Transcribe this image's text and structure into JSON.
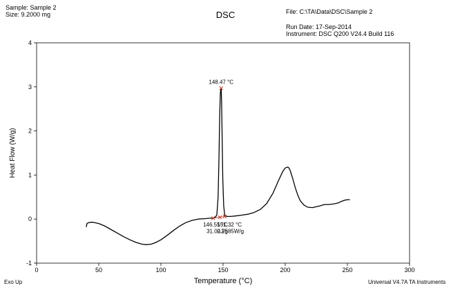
{
  "header": {
    "sample": "Sample: Sample 2",
    "size": "Size:  9.2000 mg",
    "file": "File: C:\\TA\\Data\\DSC\\Sample 2",
    "run_date": "Run Date: 17-Sep-2014",
    "instrument": "Instrument: DSC Q200 V24.4 Build 116"
  },
  "footer": {
    "exo": "Exo Up",
    "software": "Universal V4.7A TA Instruments"
  },
  "chart_data": {
    "type": "line",
    "title": "DSC",
    "xlabel": "Temperature (°C)",
    "ylabel": "Heat Flow (W/g)",
    "xlim": [
      0,
      300
    ],
    "ylim": [
      -1,
      4
    ],
    "xticks": [
      0,
      50,
      100,
      150,
      200,
      250,
      300
    ],
    "yticks": [
      -1,
      0,
      1,
      2,
      3,
      4
    ],
    "grid": false,
    "colors": {
      "curve": "#000000",
      "marker": "#c0392b"
    },
    "series": [
      {
        "x": [
          40,
          40.5,
          42,
          45,
          50,
          55,
          60,
          65,
          70,
          75,
          80,
          85,
          88,
          92,
          96,
          100,
          105,
          110,
          115,
          120,
          125,
          130,
          135,
          140,
          142,
          143,
          144,
          145,
          146,
          146.8,
          147.2,
          147.8,
          148.2,
          148.47,
          148.8,
          149.3,
          149.8,
          150.5,
          151.32,
          153,
          156,
          160,
          165,
          170,
          175,
          180,
          185,
          190,
          195,
          198,
          200,
          202,
          203,
          204,
          206,
          208,
          210,
          212,
          215,
          218,
          222,
          225,
          228,
          230,
          232,
          235,
          238,
          240,
          243,
          245,
          248,
          250,
          252
        ],
        "y": [
          -0.18,
          -0.1,
          -0.08,
          -0.07,
          -0.1,
          -0.16,
          -0.24,
          -0.32,
          -0.4,
          -0.47,
          -0.53,
          -0.57,
          -0.58,
          -0.57,
          -0.53,
          -0.47,
          -0.37,
          -0.26,
          -0.16,
          -0.08,
          -0.03,
          0.0,
          0.01,
          0.02,
          0.02,
          0.03,
          0.05,
          0.1,
          0.5,
          1.5,
          2.3,
          2.85,
          2.95,
          2.97,
          2.7,
          1.8,
          0.9,
          0.3,
          0.08,
          0.06,
          0.06,
          0.07,
          0.09,
          0.11,
          0.15,
          0.22,
          0.35,
          0.58,
          0.9,
          1.08,
          1.16,
          1.18,
          1.16,
          1.1,
          0.92,
          0.72,
          0.55,
          0.42,
          0.32,
          0.27,
          0.26,
          0.28,
          0.3,
          0.32,
          0.33,
          0.33,
          0.34,
          0.35,
          0.37,
          0.4,
          0.43,
          0.44,
          0.44
        ]
      }
    ],
    "markers": [
      {
        "x": 148.47,
        "y": 2.97
      },
      {
        "x": 142,
        "y": 0.02
      },
      {
        "x": 151.32,
        "y": 0.06
      },
      {
        "x": 147.5,
        "y": 0.04
      }
    ],
    "annotations": [
      {
        "label": "peak",
        "text": "148.47 °C",
        "x": 148.47,
        "y": 2.97
      },
      {
        "label": "onset",
        "text": "146.55 °C",
        "x": 146.55,
        "y": -0.12
      },
      {
        "label": "enthalpy",
        "text": "31.02J/g",
        "x": 146.55,
        "y": -0.27
      },
      {
        "label": "peak-end",
        "text": "151.32 °C",
        "x": 151.32,
        "y": -0.12
      },
      {
        "label": "heat-flow",
        "text": "0.2585W/g",
        "x": 151.32,
        "y": -0.27
      }
    ]
  }
}
